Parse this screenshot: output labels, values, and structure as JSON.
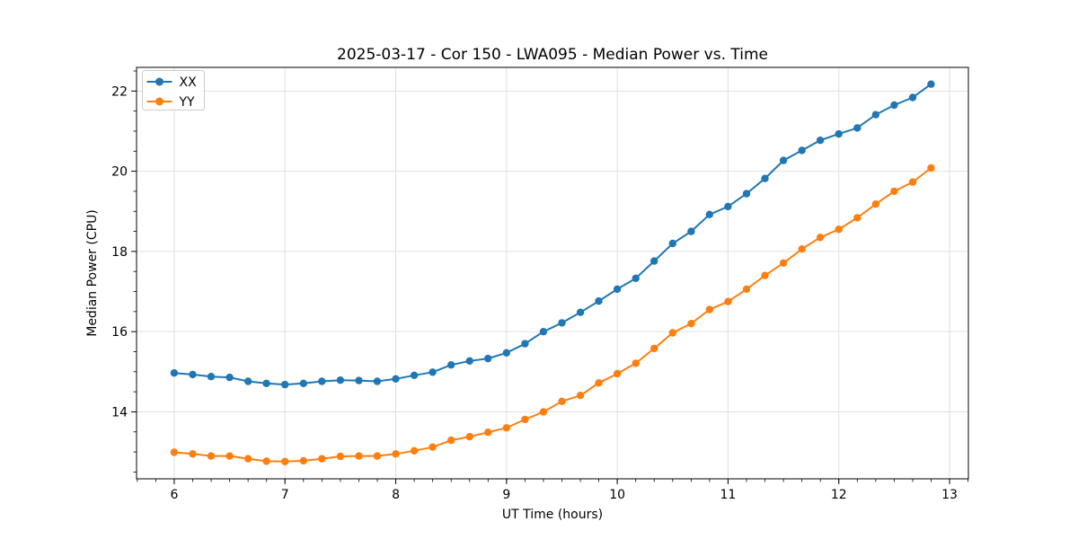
{
  "chart_data": {
    "type": "line",
    "title": "2025-03-17 - Cor 150 - LWA095 - Median Power vs. Time",
    "xlabel": "UT Time (hours)",
    "ylabel": "Median Power (CPU)",
    "xlim": [
      5.66,
      13.17
    ],
    "ylim": [
      12.33,
      22.59
    ],
    "x_ticks": [
      6,
      7,
      8,
      9,
      10,
      11,
      12,
      13
    ],
    "y_ticks": [
      14,
      16,
      18,
      20,
      22
    ],
    "x_minor_step": 0.16667,
    "y_minor_step": 0.5,
    "grid": true,
    "grid_color": "#e0e0e0",
    "spine_color": "#000000",
    "legend_position": "upper left",
    "marker": "circle",
    "x": [
      6.0,
      6.167,
      6.333,
      6.5,
      6.667,
      6.833,
      7.0,
      7.167,
      7.333,
      7.5,
      7.667,
      7.833,
      8.0,
      8.167,
      8.333,
      8.5,
      8.667,
      8.833,
      9.0,
      9.167,
      9.333,
      9.5,
      9.667,
      9.833,
      10.0,
      10.167,
      10.333,
      10.5,
      10.667,
      10.833,
      11.0,
      11.167,
      11.333,
      11.5,
      11.667,
      11.833,
      12.0,
      12.167,
      12.333,
      12.5,
      12.667,
      12.833
    ],
    "series": [
      {
        "name": "XX",
        "color": "#1f77b4",
        "values": [
          14.97,
          14.93,
          14.88,
          14.86,
          14.76,
          14.71,
          14.68,
          14.71,
          14.76,
          14.79,
          14.78,
          14.76,
          14.82,
          14.91,
          14.99,
          15.17,
          15.27,
          15.33,
          15.47,
          15.7,
          16.0,
          16.22,
          16.48,
          16.76,
          17.06,
          17.33,
          17.76,
          18.2,
          18.5,
          18.92,
          19.12,
          19.44,
          19.82,
          20.27,
          20.52,
          20.77,
          20.93,
          21.08,
          21.41,
          21.65,
          21.84,
          22.17
        ]
      },
      {
        "name": "YY",
        "color": "#ff7f0e",
        "values": [
          12.99,
          12.95,
          12.9,
          12.9,
          12.83,
          12.77,
          12.76,
          12.78,
          12.83,
          12.89,
          12.9,
          12.9,
          12.95,
          13.03,
          13.12,
          13.29,
          13.38,
          13.49,
          13.6,
          13.81,
          14.0,
          14.26,
          14.41,
          14.72,
          14.95,
          15.21,
          15.58,
          15.97,
          16.2,
          16.55,
          16.75,
          17.06,
          17.4,
          17.71,
          18.06,
          18.35,
          18.55,
          18.84,
          19.18,
          19.5,
          19.73,
          20.08
        ]
      }
    ]
  }
}
